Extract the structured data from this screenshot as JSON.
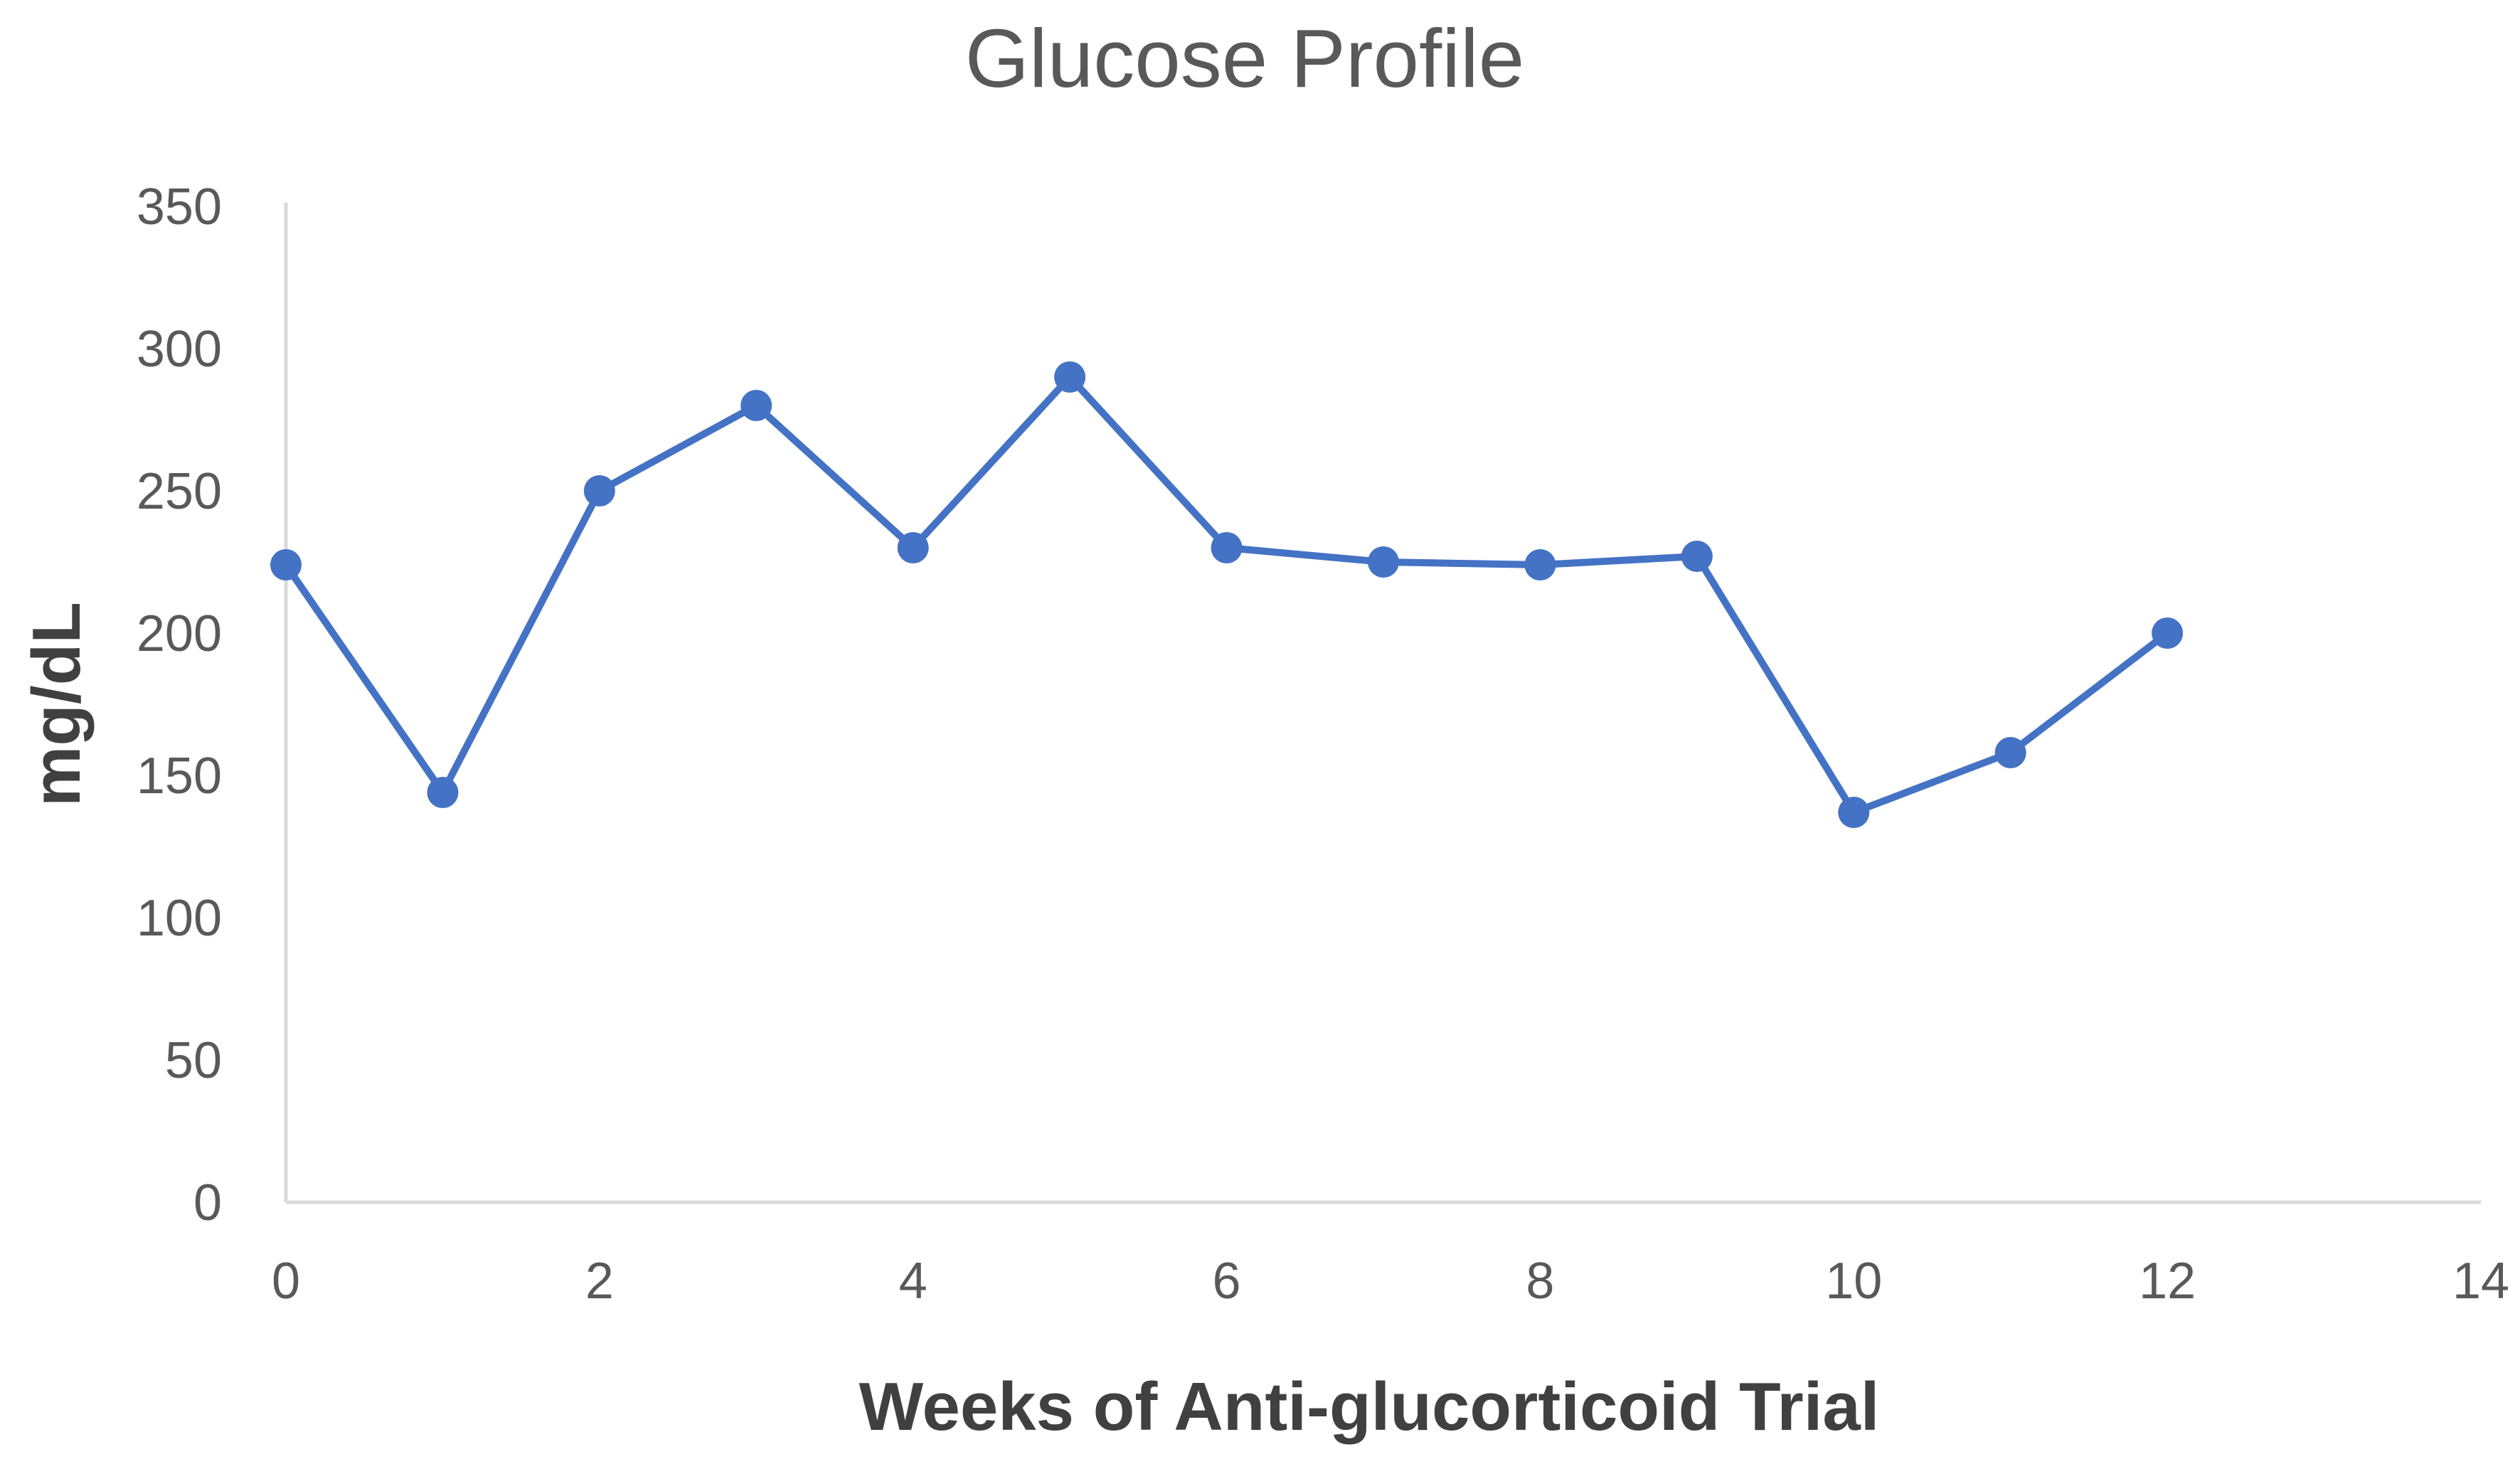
{
  "chart_data": {
    "type": "line",
    "title": "Glucose Profile",
    "xlabel": "Weeks of Anti-glucorticoid Trial",
    "ylabel": "mg/dL",
    "xlim": [
      0,
      14
    ],
    "ylim": [
      0,
      350
    ],
    "x_ticks": [
      "0",
      "2",
      "4",
      "6",
      "8",
      "10",
      "12",
      "14"
    ],
    "y_ticks": [
      "0",
      "50",
      "100",
      "150",
      "200",
      "250",
      "300",
      "350"
    ],
    "grid": false,
    "legend": "none",
    "series": [
      {
        "color": "#4472C4",
        "x": [
          0,
          1,
          2,
          3,
          4,
          5,
          6,
          7,
          8,
          9,
          10,
          11,
          12
        ],
        "y": [
          224,
          144,
          250,
          280,
          230,
          290,
          230,
          225,
          224,
          227,
          137,
          158,
          200
        ]
      }
    ]
  }
}
